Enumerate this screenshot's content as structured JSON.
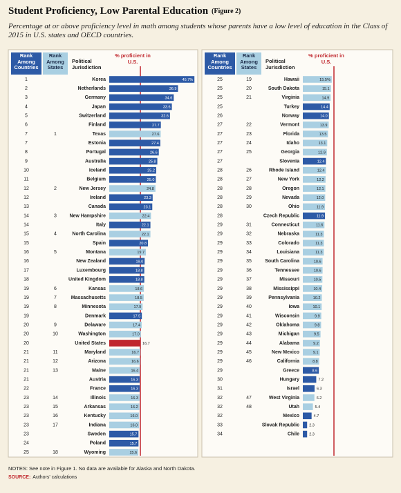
{
  "title": "Student Proficiency, Low Parental Education",
  "figure_label": "(Figure 2)",
  "subtitle": "Percentage at or above proficiency level in math among students whose parents have a low level of education in the Class of 2015 in U.S. states and OECD countries.",
  "notes": "NOTES: See note in Figure 1. No data are available for Alaska and North Dakota.",
  "source_label": "SOURCE:",
  "source": "Authors' calculations",
  "reference_color": "#c0272d",
  "chart_data": [
    {
      "type": "bar",
      "column_headers": [
        "Rank Among Countries",
        "Rank Among States",
        "Political Jurisdiction",
        "% proficient in U.S."
      ],
      "xlim": [
        0,
        46
      ],
      "rank_countries": [
        1,
        2,
        3,
        4,
        5,
        6,
        7,
        7,
        8,
        9,
        10,
        11,
        12,
        12,
        13,
        14,
        14,
        15,
        15,
        16,
        16,
        17,
        18,
        19,
        19,
        19,
        19,
        20,
        20,
        20,
        21,
        21,
        21,
        21,
        22,
        23,
        23,
        23,
        23,
        23,
        24,
        25
      ],
      "rank_states": [
        null,
        null,
        null,
        null,
        null,
        null,
        1,
        null,
        null,
        null,
        null,
        null,
        2,
        null,
        null,
        3,
        null,
        4,
        null,
        5,
        null,
        null,
        null,
        6,
        7,
        8,
        null,
        9,
        10,
        null,
        11,
        12,
        13,
        null,
        null,
        14,
        15,
        16,
        17,
        null,
        null,
        18
      ],
      "categories": [
        "Korea",
        "Netherlands",
        "Germany",
        "Japan",
        "Switzerland",
        "Finland",
        "Texas",
        "Estonia",
        "Portugal",
        "Australia",
        "Iceland",
        "Belgium",
        "New Jersey",
        "Ireland",
        "Canada",
        "New Hampshire",
        "Italy",
        "North Carolina",
        "Spain",
        "Montana",
        "New Zealand",
        "Luxembourg",
        "United Kingdom",
        "Kansas",
        "Massachusetts",
        "Minnesota",
        "Denmark",
        "Delaware",
        "Washington",
        "United States",
        "Maryland",
        "Arizona",
        "Maine",
        "Austria",
        "France",
        "Illinois",
        "Arkansas",
        "Kentucky",
        "Indiana",
        "Sweden",
        "Poland",
        "Wyoming"
      ],
      "values": [
        45.7,
        36.9,
        34.6,
        33.6,
        32.6,
        27.7,
        27.6,
        27.4,
        26.6,
        25.8,
        25.2,
        25.0,
        24.8,
        23.3,
        23.1,
        22.4,
        22.1,
        22.1,
        20.8,
        19.7,
        19.0,
        18.8,
        18.8,
        18.6,
        18.5,
        17.9,
        17.5,
        17.4,
        17.0,
        16.7,
        16.7,
        16.6,
        16.4,
        16.3,
        16.3,
        16.3,
        16.2,
        16.0,
        16.0,
        15.7,
        15.7,
        15.6
      ],
      "value_labels": [
        "45.7%",
        "36.9",
        "34.6",
        "33.6",
        "32.6",
        "27.7",
        "27.6",
        "27.4",
        "26.6",
        "25.8",
        "25.2",
        "25.0",
        "24.8",
        "23.3",
        "23.1",
        "22.4",
        "22.1",
        "22.1",
        "20.8",
        "19.7",
        "19.0",
        "18.8",
        "18.8",
        "18.6",
        "18.5",
        "17.9",
        "17.5",
        "17.4",
        "17.0",
        "16.7",
        "16.7",
        "16.6",
        "16.4",
        "16.3",
        "16.3",
        "16.3",
        "16.2",
        "16.0",
        "16.0",
        "15.7",
        "15.7",
        "15.6"
      ],
      "colors": [
        "#2d5aa6",
        "#2d5aa6",
        "#2d5aa6",
        "#2d5aa6",
        "#2d5aa6",
        "#2d5aa6",
        "#a9cfe2",
        "#2d5aa6",
        "#2d5aa6",
        "#2d5aa6",
        "#2d5aa6",
        "#2d5aa6",
        "#a9cfe2",
        "#2d5aa6",
        "#2d5aa6",
        "#a9cfe2",
        "#2d5aa6",
        "#a9cfe2",
        "#2d5aa6",
        "#a9cfe2",
        "#2d5aa6",
        "#2d5aa6",
        "#2d5aa6",
        "#a9cfe2",
        "#a9cfe2",
        "#a9cfe2",
        "#2d5aa6",
        "#a9cfe2",
        "#a9cfe2",
        "#c0272d",
        "#a9cfe2",
        "#a9cfe2",
        "#a9cfe2",
        "#2d5aa6",
        "#2d5aa6",
        "#a9cfe2",
        "#a9cfe2",
        "#a9cfe2",
        "#a9cfe2",
        "#2d5aa6",
        "#2d5aa6",
        "#a9cfe2"
      ]
    },
    {
      "type": "bar",
      "column_headers": [
        "Rank Among Countries",
        "Rank Among States",
        "Political Jurisdiction",
        "% proficient in U.S."
      ],
      "xlim": [
        0,
        46
      ],
      "rank_countries": [
        25,
        25,
        25,
        25,
        26,
        27,
        27,
        27,
        27,
        27,
        28,
        28,
        28,
        28,
        28,
        28,
        29,
        29,
        29,
        29,
        29,
        29,
        29,
        29,
        29,
        29,
        29,
        29,
        29,
        29,
        29,
        29,
        29,
        30,
        31,
        32,
        32,
        32,
        33,
        34
      ],
      "rank_states": [
        19,
        20,
        21,
        null,
        null,
        22,
        23,
        24,
        25,
        null,
        26,
        27,
        28,
        29,
        30,
        null,
        31,
        32,
        33,
        34,
        35,
        36,
        37,
        38,
        39,
        40,
        41,
        42,
        43,
        44,
        45,
        46,
        null,
        null,
        null,
        47,
        48,
        null,
        null,
        null
      ],
      "categories": [
        "Hawaii",
        "South Dakota",
        "Virginia",
        "Turkey",
        "Norway",
        "Vermont",
        "Florida",
        "Idaho",
        "Georgia",
        "Slovenia",
        "Rhode Island",
        "New York",
        "Oregon",
        "Nevada",
        "Ohio",
        "Czech Republic",
        "Connecticut",
        "Nebraska",
        "Colorado",
        "Louisiana",
        "South Carolina",
        "Tennessee",
        "Missouri",
        "Mississippi",
        "Pennsylvania",
        "Iowa",
        "Wisconsin",
        "Oklahoma",
        "Michigan",
        "Alabama",
        "New Mexico",
        "California",
        "Greece",
        "Hungary",
        "Israel",
        "West Virginia",
        "Utah",
        "Mexico",
        "Slovak Republic",
        "Chile"
      ],
      "values": [
        15.5,
        15.1,
        14.9,
        14.4,
        14.0,
        13.9,
        13.5,
        13.1,
        12.9,
        12.4,
        12.4,
        12.2,
        12.1,
        12.0,
        11.9,
        11.9,
        11.6,
        11.3,
        11.3,
        11.3,
        10.6,
        10.6,
        10.5,
        10.4,
        10.2,
        10.1,
        9.9,
        9.8,
        9.5,
        9.2,
        9.1,
        8.8,
        8.6,
        7.2,
        6.3,
        6.2,
        5.4,
        4.7,
        2.3,
        2.3
      ],
      "value_labels": [
        "15.5%",
        "15.1",
        "14.9",
        "14.4",
        "14.0",
        "13.9",
        "13.5",
        "13.1",
        "12.9",
        "12.4",
        "12.4",
        "12.2",
        "12.1",
        "12.0",
        "11.9",
        "11.9",
        "11.6",
        "11.3",
        "11.3",
        "11.3",
        "10.6",
        "10.6",
        "10.5",
        "10.4",
        "10.2",
        "10.1",
        "9.9",
        "9.8",
        "9.5",
        "9.2",
        "9.1",
        "8.8",
        "8.6",
        "7.2",
        "6.3",
        "6.2",
        "5.4",
        "4.7",
        "2.3",
        "2.3"
      ],
      "colors": [
        "#a9cfe2",
        "#a9cfe2",
        "#a9cfe2",
        "#2d5aa6",
        "#2d5aa6",
        "#a9cfe2",
        "#a9cfe2",
        "#a9cfe2",
        "#a9cfe2",
        "#2d5aa6",
        "#a9cfe2",
        "#a9cfe2",
        "#a9cfe2",
        "#a9cfe2",
        "#a9cfe2",
        "#2d5aa6",
        "#a9cfe2",
        "#a9cfe2",
        "#a9cfe2",
        "#a9cfe2",
        "#a9cfe2",
        "#a9cfe2",
        "#a9cfe2",
        "#a9cfe2",
        "#a9cfe2",
        "#a9cfe2",
        "#a9cfe2",
        "#a9cfe2",
        "#a9cfe2",
        "#a9cfe2",
        "#a9cfe2",
        "#a9cfe2",
        "#2d5aa6",
        "#2d5aa6",
        "#2d5aa6",
        "#a9cfe2",
        "#a9cfe2",
        "#2d5aa6",
        "#2d5aa6",
        "#2d5aa6"
      ]
    }
  ]
}
